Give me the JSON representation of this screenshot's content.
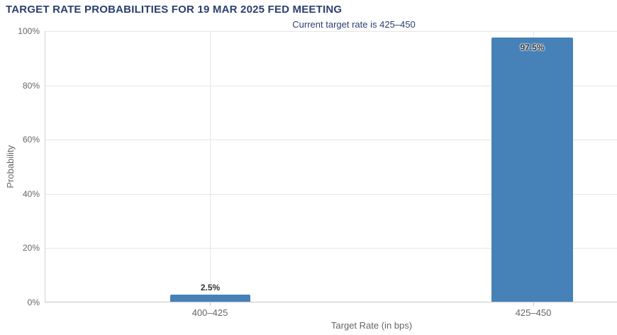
{
  "header": {
    "title": "TARGET RATE PROBABILITIES FOR 19 MAR 2025 FED MEETING",
    "subtitle": "Current target rate is 425–450"
  },
  "chart_data": {
    "type": "bar",
    "title": "TARGET RATE PROBABILITIES FOR 19 MAR 2025 FED MEETING",
    "subtitle": "Current target rate is 425–450",
    "categories": [
      "400–425",
      "425–450"
    ],
    "values": [
      2.5,
      97.5
    ],
    "data_labels": [
      "2.5%",
      "97.5%"
    ],
    "xlabel": "Target Rate (in bps)",
    "ylabel": "Probability",
    "ylim": [
      0,
      100
    ],
    "ytick_interval": 20,
    "yticks": [
      "0%",
      "20%",
      "40%",
      "60%",
      "80%",
      "100%"
    ],
    "grid": true,
    "legend": "none",
    "colors": {
      "bar": "#4681b8",
      "title": "#2a3f6f",
      "axis_text": "#666666",
      "gridline": "#e6e6e6",
      "axis_line": "#c6c6c6",
      "data_label": "#333333",
      "background": "#ffffff"
    }
  }
}
